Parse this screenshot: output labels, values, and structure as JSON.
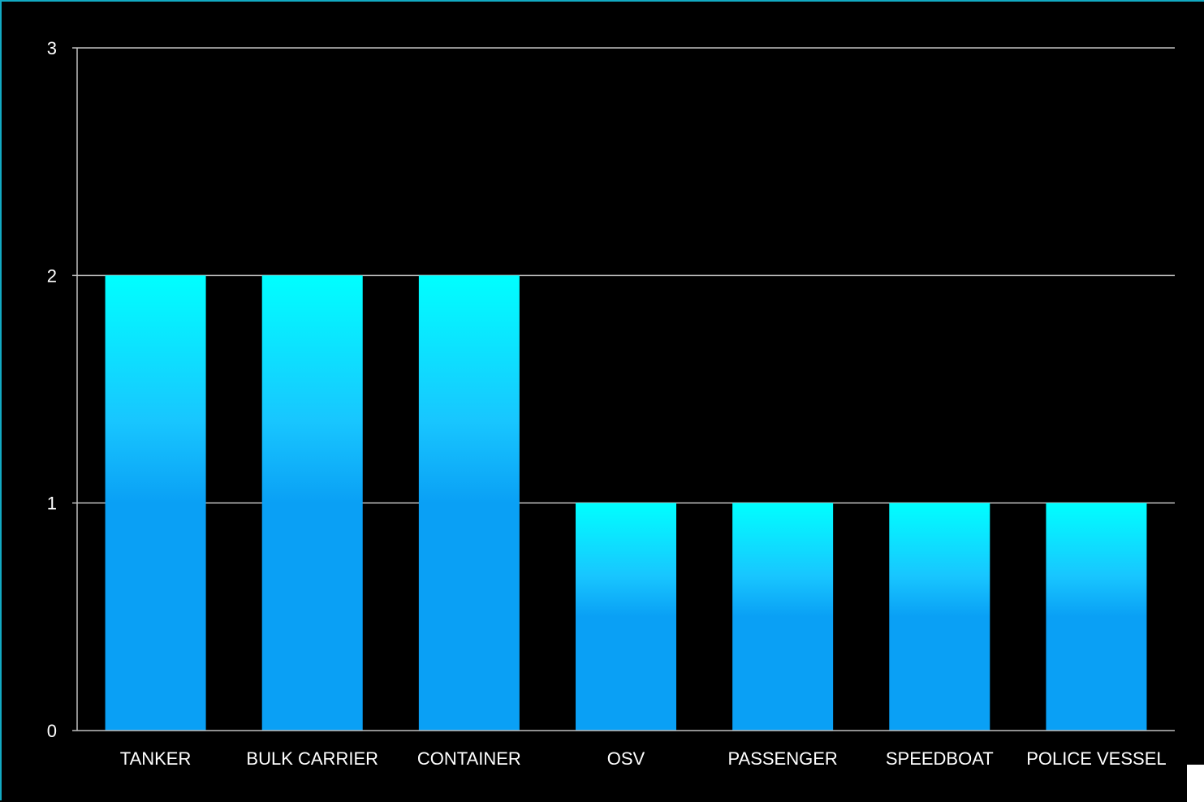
{
  "chart_data": {
    "type": "bar",
    "categories": [
      "TANKER",
      "BULK CARRIER",
      "CONTAINER",
      "OSV",
      "PASSENGER",
      "SPEEDBOAT",
      "POLICE VESSEL"
    ],
    "values": [
      2,
      2,
      2,
      1,
      1,
      1,
      1
    ],
    "title": "",
    "xlabel": "",
    "ylabel": "",
    "ylim": [
      0,
      3
    ],
    "yticks": [
      "0",
      "1",
      "2",
      "3"
    ],
    "grid": true,
    "colors": {
      "background": "#000000",
      "bar_top": "#00ffff",
      "bar_bottom": "#0aa0f5",
      "gridline": "#bfbfbf",
      "text": "#ffffff",
      "frame": "#12a9c2"
    }
  }
}
